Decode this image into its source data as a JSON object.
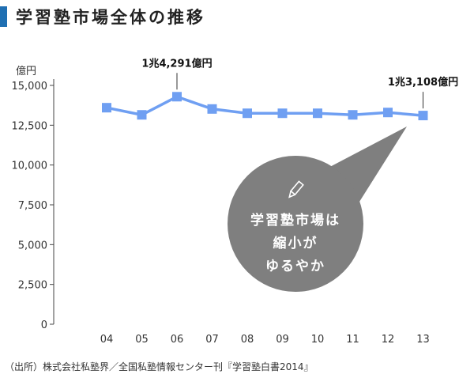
{
  "page": {
    "title": "学習塾市場全体の推移",
    "source": "（出所）株式会社私塾界／全国私塾情報センター刊『学習塾白書2014』",
    "accent_color": "#1f6fb2"
  },
  "chart_data": {
    "type": "line",
    "title": "学習塾市場全体の推移",
    "ylabel": "億円",
    "xlabel": "",
    "categories": [
      "04",
      "05",
      "06",
      "07",
      "08",
      "09",
      "10",
      "11",
      "12",
      "13"
    ],
    "series": [
      {
        "values": [
          13600,
          13150,
          14291,
          13520,
          13250,
          13250,
          13250,
          13150,
          13300,
          13108
        ],
        "color": "#6f9ff2"
      }
    ],
    "ylim": [
      0,
      15000
    ],
    "yticks": [
      "0",
      "2,500",
      "5,000",
      "7,500",
      "10,000",
      "12,500",
      "15,000"
    ],
    "grid": false,
    "annotations": [
      {
        "label": "1兆4,291億円",
        "category": "06"
      },
      {
        "label": "1兆3,108億円",
        "category": "13"
      }
    ],
    "bubble": {
      "lines": [
        "学習塾市場は",
        "縮小が",
        "ゆるやか"
      ],
      "color": "#7f7f7f",
      "icon": "pencil-icon"
    }
  }
}
